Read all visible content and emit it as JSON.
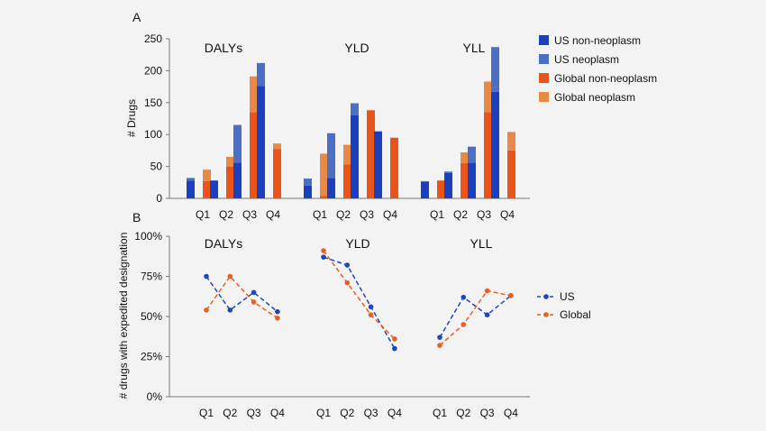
{
  "colors": {
    "background": "#f3f3f3",
    "us_non_neoplasm": "#1a3fbf",
    "us_neoplasm": "#4a6fc4",
    "global_non_neoplasm": "#e8541a",
    "global_neoplasm": "#e8894a",
    "us_line": "#1f47bd",
    "global_line": "#e8601c"
  },
  "panel_a": {
    "letter": "A",
    "ylabel": "# Drugs",
    "yticks": [
      "0",
      "50",
      "100",
      "150",
      "200",
      "250"
    ],
    "groups": [
      "DALYs",
      "YLD",
      "YLL"
    ],
    "legend": [
      "US non-neoplasm",
      "US neoplasm",
      "Global non-neoplasm",
      "Global neoplasm"
    ]
  },
  "panel_b": {
    "letter": "B",
    "ylabel": "# drugs with expedited designation",
    "yticks": [
      "0%",
      "25%",
      "50%",
      "75%",
      "100%"
    ],
    "groups": [
      "DALYs",
      "YLD",
      "YLL"
    ],
    "legend": [
      "US",
      "Global"
    ]
  },
  "chart_data": [
    {
      "type": "bar",
      "panel": "A",
      "ylabel": "# Drugs",
      "ylim": [
        0,
        250
      ],
      "groups": [
        "DALYs",
        "YLD",
        "YLL"
      ],
      "categories": [
        "Q1",
        "Q2",
        "Q3",
        "Q4"
      ],
      "stacked": true,
      "series": [
        {
          "name": "US non-neoplasm",
          "stack": "US",
          "values": {
            "DALYs": [
              28,
              28,
              56,
              176
            ],
            "YLD": [
              20,
              32,
              130,
              105
            ],
            "YLL": [
              26,
              40,
              56,
              167
            ]
          }
        },
        {
          "name": "US neoplasm",
          "stack": "US",
          "values": {
            "DALYs": [
              4,
              0,
              59,
              36
            ],
            "YLD": [
              11,
              70,
              19,
              0
            ],
            "YLL": [
              1,
              2,
              25,
              70
            ]
          }
        },
        {
          "name": "Global non-neoplasm",
          "stack": "Global",
          "values": {
            "DALYs": [
              27,
              50,
              135,
              77
            ],
            "YLD": [
              4,
              53,
              138,
              95
            ],
            "YLL": [
              28,
              55,
              135,
              75
            ]
          }
        },
        {
          "name": "Global neoplasm",
          "stack": "Global",
          "values": {
            "DALYs": [
              18,
              15,
              56,
              9
            ],
            "YLD": [
              66,
              31,
              0,
              0
            ],
            "YLL": [
              0,
              17,
              48,
              29
            ]
          }
        }
      ]
    },
    {
      "type": "line",
      "panel": "B",
      "ylabel": "# drugs with expedited designation",
      "ylim": [
        0,
        100
      ],
      "groups": [
        "DALYs",
        "YLD",
        "YLL"
      ],
      "categories": [
        "Q1",
        "Q2",
        "Q3",
        "Q4"
      ],
      "series": [
        {
          "name": "US",
          "values": {
            "DALYs": [
              75,
              54,
              65,
              53
            ],
            "YLD": [
              87,
              82,
              56,
              30
            ],
            "YLL": [
              37,
              62,
              51,
              63
            ]
          }
        },
        {
          "name": "Global",
          "values": {
            "DALYs": [
              54,
              75,
              59,
              49
            ],
            "YLD": [
              91,
              71,
              51,
              36
            ],
            "YLL": [
              32,
              45,
              66,
              63
            ]
          }
        }
      ]
    }
  ]
}
